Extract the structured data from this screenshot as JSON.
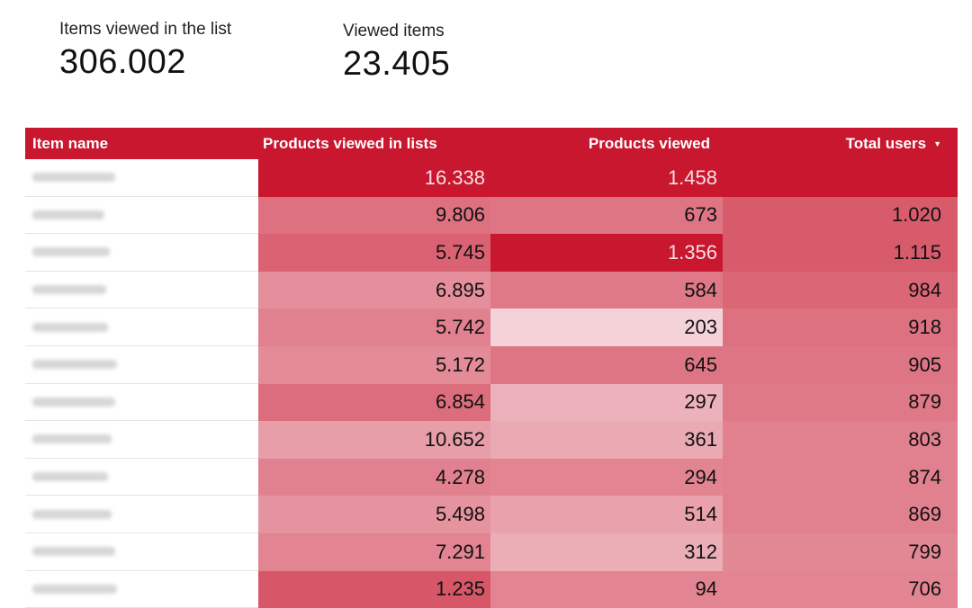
{
  "scorecards": [
    {
      "label": "Items viewed in the list",
      "value": "306.002"
    },
    {
      "label": "Viewed items",
      "value": "23.405"
    }
  ],
  "table": {
    "columns": {
      "item_name": "Item name",
      "products_viewed_in_lists": "Products viewed in lists",
      "products_viewed": "Products viewed",
      "total_users": "Total users"
    },
    "sort": {
      "column": "total_users",
      "direction": "descending"
    },
    "colors": {
      "header": "#c8172f",
      "max": "#c8172f",
      "min": "#f4d3d8"
    },
    "rows": [
      {
        "item": "",
        "lists": "16.338",
        "viewed": "1.458",
        "users": "",
        "lists_level": 1.0,
        "viewed_level": 1.0,
        "users_level": 1.0
      },
      {
        "item": "",
        "lists": "9.806",
        "viewed": "673",
        "users": "1.020",
        "lists_level": 0.52,
        "viewed_level": 0.5,
        "users_level": 0.64
      },
      {
        "item": "",
        "lists": "5.745",
        "viewed": "1.356",
        "users": "1.115",
        "lists_level": 0.6,
        "viewed_level": 1.0,
        "users_level": 0.64
      },
      {
        "item": "",
        "lists": "6.895",
        "viewed": "584",
        "users": "984",
        "lists_level": 0.36,
        "viewed_level": 0.48,
        "users_level": 0.58
      },
      {
        "item": "",
        "lists": "5.742",
        "viewed": "203",
        "users": "918",
        "lists_level": 0.44,
        "viewed_level": 0.0,
        "users_level": 0.52
      },
      {
        "item": "",
        "lists": "5.172",
        "viewed": "645",
        "users": "905",
        "lists_level": 0.38,
        "viewed_level": 0.5,
        "users_level": 0.5
      },
      {
        "item": "",
        "lists": "6.854",
        "viewed": "297",
        "users": "879",
        "lists_level": 0.54,
        "viewed_level": 0.18,
        "users_level": 0.48
      },
      {
        "item": "",
        "lists": "10.652",
        "viewed": "361",
        "users": "803",
        "lists_level": 0.28,
        "viewed_level": 0.22,
        "users_level": 0.44
      },
      {
        "item": "",
        "lists": "4.278",
        "viewed": "294",
        "users": "874",
        "lists_level": 0.44,
        "viewed_level": 0.42,
        "users_level": 0.44
      },
      {
        "item": "",
        "lists": "5.498",
        "viewed": "514",
        "users": "869",
        "lists_level": 0.34,
        "viewed_level": 0.26,
        "users_level": 0.44
      },
      {
        "item": "",
        "lists": "7.291",
        "viewed": "312",
        "users": "799",
        "lists_level": 0.42,
        "viewed_level": 0.2,
        "users_level": 0.4
      },
      {
        "item": "",
        "lists": "1.235",
        "viewed": "94",
        "users": "706",
        "lists_level": 0.66,
        "viewed_level": 0.42,
        "users_level": 0.42
      }
    ]
  }
}
